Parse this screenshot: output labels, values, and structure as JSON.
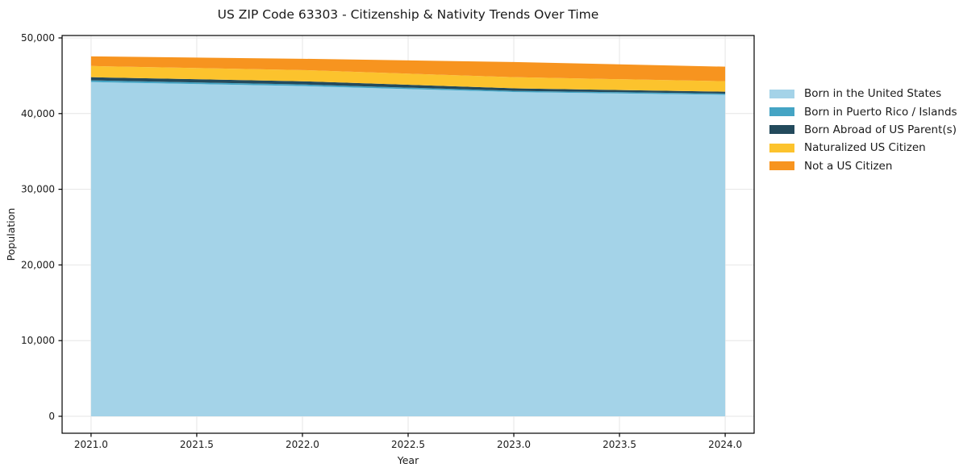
{
  "chart_data": {
    "type": "area",
    "stacked": true,
    "title": "US ZIP Code 63303 - Citizenship & Nativity Trends Over Time",
    "xlabel": "Year",
    "ylabel": "Population",
    "x": [
      2021,
      2022,
      2023,
      2024
    ],
    "series": [
      {
        "name": "Born in the United States",
        "color": "#a4d3e8",
        "values": [
          44170,
          43640,
          42850,
          42480
        ]
      },
      {
        "name": "Born in Puerto Rico / Islands",
        "color": "#44a4c4",
        "values": [
          220,
          215,
          160,
          170
        ]
      },
      {
        "name": "Born Abroad of US Parent(s)",
        "color": "#234a5c",
        "values": [
          420,
          420,
          330,
          250
        ]
      },
      {
        "name": "Naturalized US Citizen",
        "color": "#fcc32d",
        "values": [
          1480,
          1480,
          1470,
          1380
        ]
      },
      {
        "name": "Not a US Citizen",
        "color": "#f7941f",
        "values": [
          1270,
          1490,
          2010,
          1920
        ]
      }
    ],
    "xticks": {
      "values": [
        2021.0,
        2021.5,
        2022.0,
        2022.5,
        2023.0,
        2023.5,
        2024.0
      ],
      "labels": [
        "2021.0",
        "2021.5",
        "2022.0",
        "2022.5",
        "2023.0",
        "2023.5",
        "2024.0"
      ]
    },
    "yticks": {
      "values": [
        0,
        10000,
        20000,
        30000,
        40000,
        50000
      ],
      "labels": [
        "0",
        "10,000",
        "20,000",
        "30,000",
        "40,000",
        "50,000"
      ]
    },
    "xlim": [
      2020.863,
      2024.137
    ],
    "ylim": [
      -2240,
      50320
    ],
    "grid": true,
    "grid_color": "#e6e6e6",
    "axis_color": "#000000",
    "text_color": "#1a1a1a",
    "legend_position": "right-outside"
  }
}
